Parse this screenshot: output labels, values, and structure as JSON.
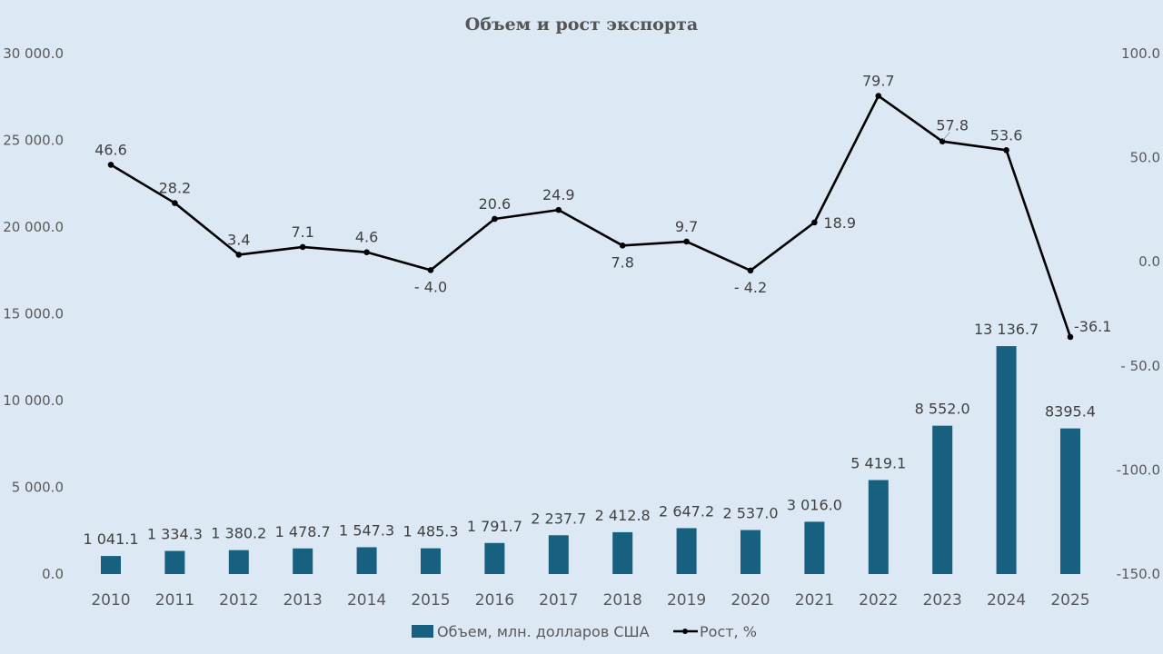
{
  "chart_data": {
    "type": "bar+line",
    "title": "Объем и рост экспорта",
    "categories": [
      "2010",
      "2011",
      "2012",
      "2013",
      "2014",
      "2015",
      "2016",
      "2017",
      "2018",
      "2019",
      "2020",
      "2021",
      "2022",
      "2023",
      "2024",
      "2025"
    ],
    "series": [
      {
        "name": "Объем, млн. долларов США",
        "type": "bar",
        "axis": "left",
        "color": "#17607f",
        "values": [
          1041.1,
          1334.3,
          1380.2,
          1478.7,
          1547.3,
          1485.3,
          1791.7,
          2237.7,
          2412.8,
          2647.2,
          2537.0,
          3016.0,
          5419.1,
          8552.0,
          13136.7,
          8395.4
        ],
        "labels": [
          "1 041.1",
          "1 334.3",
          "1 380.2",
          "1 478.7",
          "1 547.3",
          "1 485.3",
          "1 791.7",
          "2 237.7",
          "2 412.8",
          "2 647.2",
          "2 537.0",
          "3 016.0",
          "5 419.1",
          "8 552.0",
          "13 136.7",
          "8395.4"
        ]
      },
      {
        "name": "Рост, %",
        "type": "line",
        "axis": "right",
        "color": "#000000",
        "values": [
          46.6,
          28.2,
          3.4,
          7.1,
          4.6,
          -4.0,
          20.6,
          24.9,
          7.8,
          9.7,
          -4.2,
          18.9,
          79.7,
          57.8,
          53.6,
          -36.1
        ],
        "labels": [
          "46.6",
          "28.2",
          "3.4",
          "7.1",
          "4.6",
          "- 4.0",
          "20.6",
          "24.9",
          "7.8",
          "9.7",
          "- 4.2",
          "18.9",
          "79.7",
          "57.8",
          "53.6",
          "-36.1"
        ]
      }
    ],
    "y_left": {
      "range": [
        0,
        30000
      ],
      "ticks": [
        0,
        5000,
        10000,
        15000,
        20000,
        25000,
        30000
      ],
      "tick_labels": [
        "0.0",
        "5 000.0",
        "10 000.0",
        "15 000.0",
        "20 000.0",
        "25 000.0",
        "30 000.0"
      ]
    },
    "y_right": {
      "range": [
        -150,
        100
      ],
      "ticks": [
        -150,
        -100,
        -50,
        0,
        50,
        100
      ],
      "tick_labels": [
        "-150.0",
        "-100.0",
        "- 50.0",
        "0.0",
        "50.0",
        "100.0"
      ]
    },
    "grid": false,
    "legend_position": "bottom",
    "highlight_color": "#ff0000",
    "highlight_labels": [
      "8395.4",
      "-36.1"
    ]
  }
}
